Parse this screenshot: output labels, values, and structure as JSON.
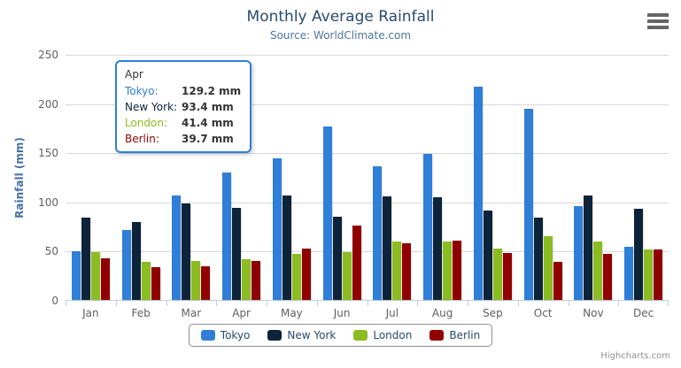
{
  "chart": {
    "title": "Monthly Average Rainfall",
    "subtitle": "Source: WorldClimate.com",
    "ylabel": "Rainfall (mm)",
    "credits": "Highcharts.com",
    "context_menu_icon": "hamburger-icon"
  },
  "chart_data": {
    "type": "bar",
    "title": "Monthly Average Rainfall",
    "subtitle": "Source: WorldClimate.com",
    "xlabel": "",
    "ylabel": "Rainfall (mm)",
    "ylim": [
      0,
      250
    ],
    "yticks": [
      0,
      50,
      100,
      150,
      200,
      250
    ],
    "grid": true,
    "legend_position": "bottom",
    "categories": [
      "Jan",
      "Feb",
      "Mar",
      "Apr",
      "May",
      "Jun",
      "Jul",
      "Aug",
      "Sep",
      "Oct",
      "Nov",
      "Dec"
    ],
    "series": [
      {
        "name": "Tokyo",
        "color": "#2f7ed8",
        "values": [
          49.9,
          71.5,
          106.4,
          129.2,
          144.0,
          176.0,
          135.6,
          148.5,
          216.4,
          194.1,
          95.6,
          54.4
        ]
      },
      {
        "name": "New York",
        "color": "#0d233a",
        "values": [
          83.6,
          78.8,
          98.5,
          93.4,
          106.0,
          84.5,
          105.0,
          104.3,
          91.2,
          83.5,
          106.6,
          92.3
        ]
      },
      {
        "name": "London",
        "color": "#8bbc21",
        "values": [
          48.9,
          38.8,
          39.3,
          41.4,
          47.0,
          48.3,
          59.0,
          59.6,
          52.4,
          65.2,
          59.3,
          51.2
        ]
      },
      {
        "name": "Berlin",
        "color": "#910000",
        "values": [
          42.4,
          33.2,
          34.5,
          39.7,
          52.6,
          75.5,
          57.4,
          60.4,
          47.6,
          39.1,
          46.8,
          51.1
        ]
      }
    ]
  },
  "tooltip": {
    "header": "Apr",
    "border_color": "#2f7ed8",
    "rows": [
      {
        "label": "Tokyo:",
        "value": "129.2 mm"
      },
      {
        "label": "New York:",
        "value": "93.4 mm"
      },
      {
        "label": "London:",
        "value": "41.4 mm"
      },
      {
        "label": "Berlin:",
        "value": "39.7 mm"
      }
    ]
  },
  "style_colors": {
    "title": "#274b6d",
    "subtitle": "#4d759e",
    "axis_labels": "#606060",
    "gridline": "#D8D8D8",
    "axis_line": "#C0D0E0",
    "legend_border": "#909090",
    "credits": "#909090"
  }
}
